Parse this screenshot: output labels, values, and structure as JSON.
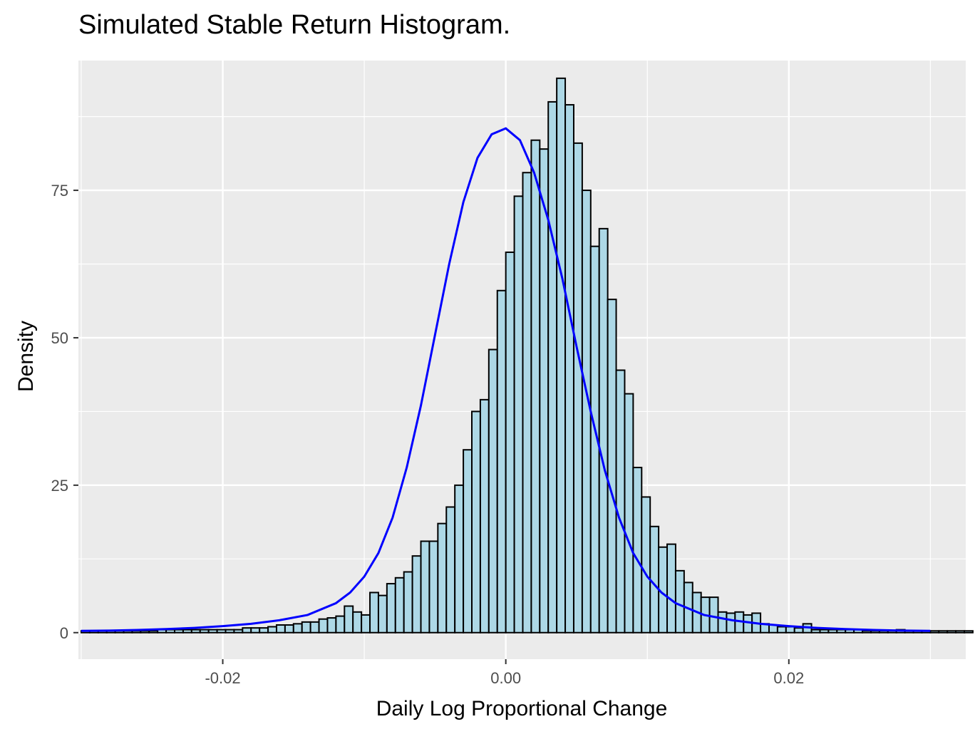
{
  "chart_data": {
    "type": "bar",
    "title": "Simulated Stable Return Histogram.",
    "xlabel": "Daily Log Proportional Change",
    "ylabel": "Density",
    "xlim": [
      -0.0302,
      0.0325
    ],
    "ylim": [
      -4.5,
      97
    ],
    "x_ticks": [
      -0.02,
      0.0,
      0.02
    ],
    "x_tick_labels": [
      "-0.02",
      "0.00",
      "0.02"
    ],
    "x_minor_ticks": [
      -0.03,
      -0.01,
      0.01,
      0.03
    ],
    "y_ticks": [
      0,
      25,
      50,
      75
    ],
    "y_tick_labels": [
      "0",
      "25",
      "50",
      "75"
    ],
    "y_minor_ticks": [
      12.5,
      37.5,
      62.5,
      87.5
    ],
    "grid": true,
    "legend": "none",
    "bin_width": 0.0006,
    "bins_start": -0.03,
    "histogram_values": [
      0.3,
      0.3,
      0.3,
      0.3,
      0.3,
      0.3,
      0.3,
      0.3,
      0.3,
      0.5,
      0.5,
      0.5,
      0.5,
      0.5,
      0.5,
      0.5,
      0.5,
      0.5,
      0.5,
      0.8,
      0.8,
      0.8,
      1.0,
      1.3,
      1.3,
      1.5,
      1.8,
      1.8,
      2.3,
      2.5,
      2.8,
      4.5,
      3.5,
      3.0,
      6.8,
      6.3,
      8.3,
      9.3,
      10.3,
      13.0,
      15.5,
      15.5,
      18.5,
      21.3,
      25.0,
      31.0,
      37.5,
      39.5,
      48.0,
      58.0,
      64.5,
      74.0,
      78.0,
      83.5,
      82.0,
      90.0,
      94.0,
      89.5,
      83.0,
      75.0,
      65.5,
      68.5,
      56.5,
      44.5,
      40.5,
      28.0,
      23.0,
      18.0,
      14.5,
      15.0,
      10.5,
      8.5,
      6.8,
      6.0,
      6.0,
      3.5,
      3.3,
      3.5,
      3.0,
      3.3,
      1.5,
      1.3,
      1.0,
      1.0,
      0.8,
      1.5,
      0.5,
      0.5,
      0.5,
      0.5,
      0.5,
      0.5,
      0.3,
      0.3,
      0.3,
      0.3,
      0.5,
      0.3,
      0.3,
      0.3,
      0.3,
      0.3,
      0.3,
      0.3,
      0.3
    ],
    "density_curve": {
      "x": [
        -0.03,
        -0.028,
        -0.026,
        -0.024,
        -0.022,
        -0.02,
        -0.018,
        -0.016,
        -0.014,
        -0.012,
        -0.011,
        -0.01,
        -0.009,
        -0.008,
        -0.007,
        -0.006,
        -0.005,
        -0.004,
        -0.003,
        -0.002,
        -0.001,
        0.0,
        0.001,
        0.002,
        0.003,
        0.004,
        0.005,
        0.006,
        0.007,
        0.008,
        0.009,
        0.01,
        0.011,
        0.012,
        0.014,
        0.016,
        0.018,
        0.02,
        0.022,
        0.024,
        0.026,
        0.028,
        0.03
      ],
      "y": [
        0.3,
        0.35,
        0.45,
        0.6,
        0.8,
        1.1,
        1.5,
        2.1,
        3.0,
        5.0,
        6.8,
        9.5,
        13.5,
        19.5,
        28.0,
        38.5,
        50.5,
        62.5,
        73.0,
        80.5,
        84.5,
        85.5,
        83.5,
        78.0,
        70.0,
        60.0,
        48.5,
        37.5,
        27.5,
        19.5,
        13.5,
        9.5,
        6.8,
        5.0,
        3.0,
        2.1,
        1.5,
        1.1,
        0.8,
        0.6,
        0.45,
        0.35,
        0.3
      ],
      "color": "#0000ff"
    },
    "bar_fill": "#add8e6",
    "bar_outline": "#000000",
    "panel_background": "#ebebeb",
    "grid_color": "#ffffff"
  }
}
